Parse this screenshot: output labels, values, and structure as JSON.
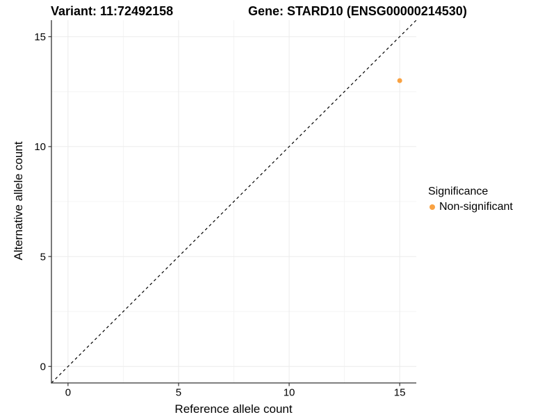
{
  "chart_data": {
    "type": "scatter",
    "titles": {
      "left": "Variant: 11:72492158",
      "right": "Gene: STARD10 (ENSG00000214530)"
    },
    "xlabel": "Reference allele count",
    "ylabel": "Alternative allele count",
    "xlim": [
      -0.75,
      15.75
    ],
    "ylim": [
      -0.75,
      15.75
    ],
    "xticks": [
      0,
      5,
      10,
      15
    ],
    "yticks": [
      0,
      5,
      10,
      15
    ],
    "xminor": [
      2.5,
      7.5,
      12.5
    ],
    "yminor": [
      2.5,
      7.5,
      12.5
    ],
    "grid": "major+minor",
    "series": [
      {
        "name": "Non-significant",
        "points": [
          {
            "x": 15,
            "y": 13
          }
        ]
      }
    ],
    "identity_line": {
      "style": "dashed",
      "from": [
        -0.75,
        -0.75
      ],
      "to": [
        15.75,
        15.75
      ]
    },
    "legend": {
      "title": "Significance",
      "position": "right",
      "entries": [
        {
          "label": "Non-significant",
          "color": "#F9A242"
        }
      ]
    },
    "colors": {
      "point": "#F9A242",
      "axis": "#333333",
      "tick_label": "#000000",
      "grid_major": "#EBEBEB",
      "grid_minor": "#F4F4F4",
      "identity": "#000000"
    }
  }
}
